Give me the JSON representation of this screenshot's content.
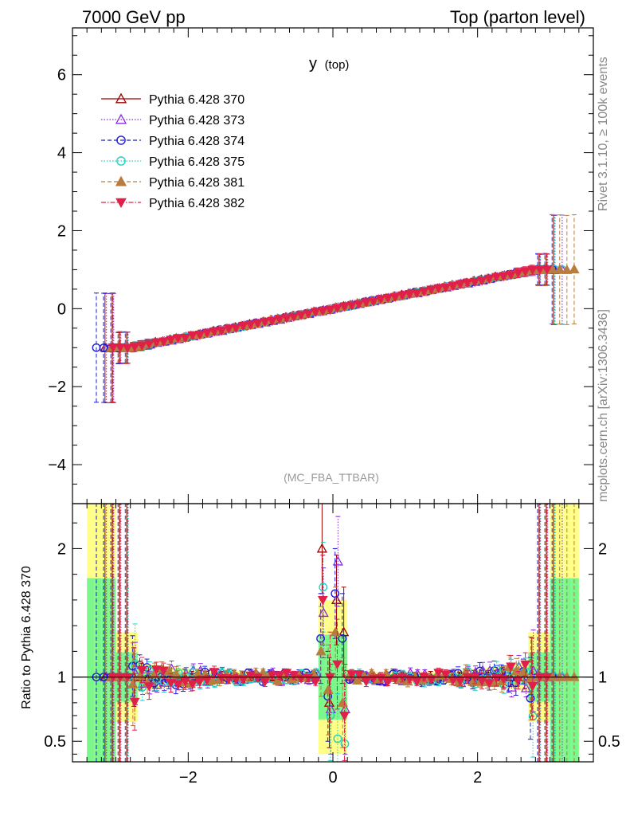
{
  "header": {
    "left": "7000 GeV pp",
    "right": "Top (parton level)"
  },
  "side": {
    "top": "Rivet 3.1.10, ≥ 100k events",
    "bottom": "mcplots.cern.ch [arXiv:1306.3436]"
  },
  "chart_data": [
    {
      "type": "line",
      "panel": "main",
      "title_main": "y",
      "title_sub": "(top)",
      "watermark": "(MC_FBA_TTBAR)",
      "xlim": [
        -3.6,
        3.6
      ],
      "ylim": [
        -5,
        7.2
      ],
      "yticks": [
        6,
        4,
        2,
        0,
        -2,
        -4
      ],
      "ytick_labels": [
        "6",
        "4",
        "2",
        "0",
        "−2",
        "−4"
      ],
      "legend_position": "top-left",
      "series": [
        {
          "name": "Pythia 6.428 370",
          "color": "#a00000",
          "marker": "triangle-open",
          "dash": "solid",
          "start": -3.1,
          "end": 3.1,
          "ext_left": -3.2,
          "ext_right": 3.1
        },
        {
          "name": "Pythia 6.428 373",
          "color": "#8a2be2",
          "marker": "triangle-open",
          "dash": "dotted",
          "start": -3.1,
          "end": 3.2,
          "ext_left": -3.2,
          "ext_right": 3.2
        },
        {
          "name": "Pythia 6.428 374",
          "color": "#1c1cd6",
          "marker": "circle-open",
          "dash": "dashed",
          "start": -3.3,
          "end": 3.1,
          "ext_left": -3.3,
          "ext_right": 3.1
        },
        {
          "name": "Pythia 6.428 375",
          "color": "#1fd1c0",
          "marker": "circle-open",
          "dash": "dotted",
          "start": -3.0,
          "end": 3.2,
          "ext_left": -3.0,
          "ext_right": 3.2
        },
        {
          "name": "Pythia 6.428 381",
          "color": "#b87c3e",
          "marker": "triangle-filled",
          "dash": "dashed",
          "start": -3.1,
          "end": 3.4,
          "ext_left": -3.1,
          "ext_right": 3.4
        },
        {
          "name": "Pythia 6.428 382",
          "color": "#e0204a",
          "marker": "triangle-down-filled",
          "dash": "dashdot",
          "start": -3.1,
          "end": 3.0,
          "ext_left": -3.1,
          "ext_right": 3.0
        }
      ]
    },
    {
      "type": "scatter",
      "panel": "ratio",
      "ylabel": "Ratio to Pythia 6.428 370",
      "xlim": [
        -3.6,
        3.6
      ],
      "ylim": [
        0.34,
        2.35
      ],
      "xticks": [
        -2,
        0,
        2
      ],
      "xtick_labels": [
        "−2",
        "0",
        "2"
      ],
      "yticks": [
        2,
        1,
        0.5
      ],
      "ytick_labels": [
        "2",
        "1",
        "0.5"
      ],
      "reference_value": 1,
      "central_spikes": [
        {
          "x": -0.15,
          "values": [
            2.0,
            1.5,
            1.3,
            1.7,
            1.2,
            1.6
          ]
        },
        {
          "x": -0.05,
          "values": [
            0.8,
            0.75,
            0.85,
            0.7,
            0.9,
            1.0
          ]
        },
        {
          "x": 0.05,
          "values": [
            1.6,
            1.9,
            1.65,
            0.52,
            1.35,
            1.1
          ]
        },
        {
          "x": 0.15,
          "values": [
            1.35,
            0.75,
            1.3,
            0.48,
            0.8,
            0.7
          ]
        }
      ]
    }
  ],
  "colors": {
    "band_inner": "#7cf78b",
    "band_outer": "#ffff88",
    "axis": "#000000"
  }
}
